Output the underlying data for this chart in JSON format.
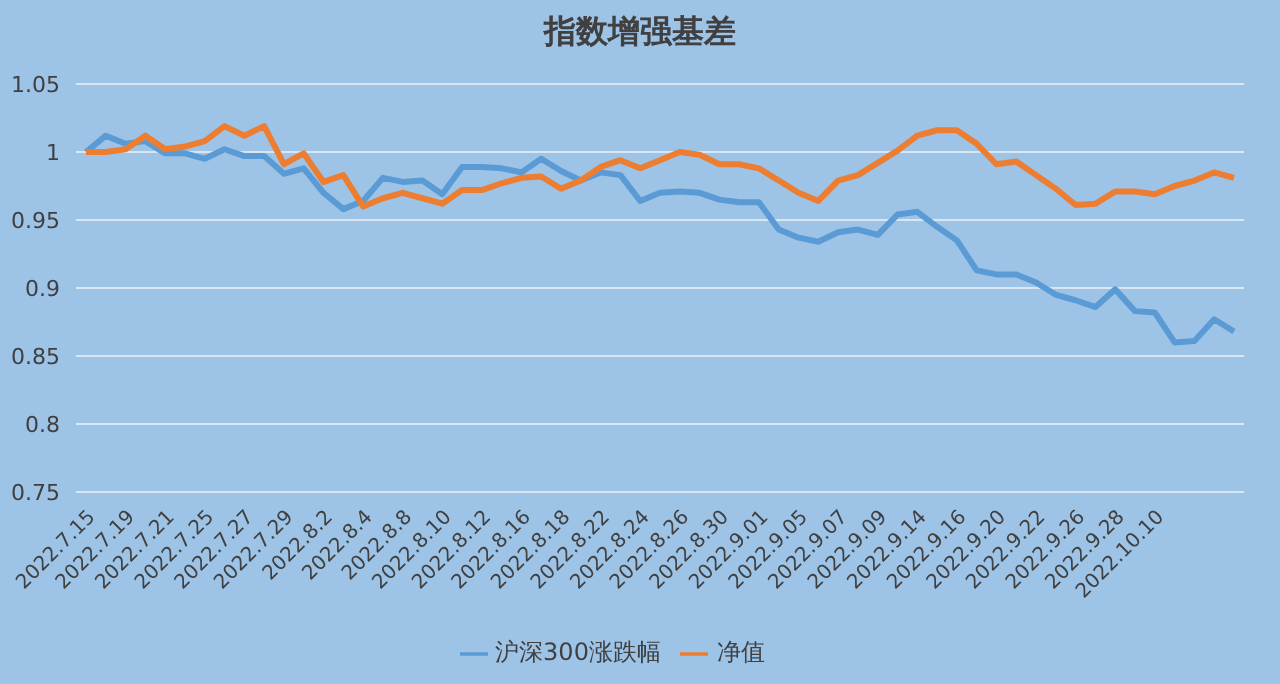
{
  "chart_data": {
    "type": "line",
    "title": "指数增强基差",
    "categories": [
      "2022.7.15",
      null,
      "2022.7.19",
      null,
      "2022.7.21",
      null,
      "2022.7.25",
      null,
      "2022.7.27",
      null,
      "2022.7.29",
      null,
      "2022.8.2",
      null,
      "2022.8.4",
      null,
      "2022.8.8",
      null,
      "2022.8.10",
      null,
      "2022.8.12",
      null,
      "2022.8.16",
      null,
      "2022.8.18",
      null,
      "2022.8.22",
      null,
      "2022.8.24",
      null,
      "2022.8.26",
      null,
      "2022.8.30",
      null,
      "2022.9.01",
      null,
      "2022.9.05",
      null,
      "2022.9.07",
      null,
      "2022.9.09",
      null,
      "2022.9.14",
      null,
      "2022.9.16",
      null,
      "2022.9.20",
      null,
      "2022.9.22",
      null,
      "2022.9.26",
      null,
      "2022.9.28",
      null,
      "2022.10.10",
      null,
      null,
      null,
      null
    ],
    "series": [
      {
        "name": "沪深300涨跌幅",
        "color": "#5b9bd5",
        "values": [
          1.0,
          1.012,
          1.006,
          1.008,
          0.999,
          0.999,
          0.995,
          1.002,
          0.997,
          0.997,
          0.984,
          0.988,
          0.97,
          0.958,
          0.964,
          0.981,
          0.978,
          0.979,
          0.969,
          0.989,
          0.989,
          0.988,
          0.985,
          0.995,
          0.986,
          0.979,
          0.985,
          0.983,
          0.964,
          0.97,
          0.971,
          0.97,
          0.965,
          0.963,
          0.963,
          0.943,
          0.937,
          0.934,
          0.941,
          0.943,
          0.939,
          0.954,
          0.956,
          0.945,
          0.935,
          0.913,
          0.91,
          0.91,
          0.904,
          0.895,
          0.891,
          0.886,
          0.899,
          0.883,
          0.882,
          0.86,
          0.861,
          0.877,
          0.868
        ]
      },
      {
        "name": "净值",
        "color": "#ed7d31",
        "values": [
          1.0,
          1.0,
          1.002,
          1.012,
          1.002,
          1.004,
          1.008,
          1.019,
          1.012,
          1.019,
          0.991,
          0.999,
          0.978,
          0.983,
          0.96,
          0.966,
          0.97,
          0.966,
          0.962,
          0.972,
          0.972,
          0.977,
          0.981,
          0.982,
          0.973,
          0.979,
          0.989,
          0.994,
          0.988,
          0.994,
          1.0,
          0.998,
          0.991,
          0.991,
          0.988,
          0.979,
          0.97,
          0.964,
          0.979,
          0.983,
          0.992,
          1.001,
          1.012,
          1.016,
          1.016,
          1.006,
          0.991,
          0.993,
          0.983,
          0.973,
          0.961,
          0.962,
          0.971,
          0.971,
          0.969,
          0.975,
          0.979,
          0.985,
          0.981
        ]
      }
    ],
    "ylim": [
      0.75,
      1.05
    ],
    "yticks": [
      0.75,
      0.8,
      0.85,
      0.9,
      0.95,
      1,
      1.05
    ],
    "grid": "y",
    "legend": "bottom",
    "marker": "none",
    "line_style": "solid"
  }
}
